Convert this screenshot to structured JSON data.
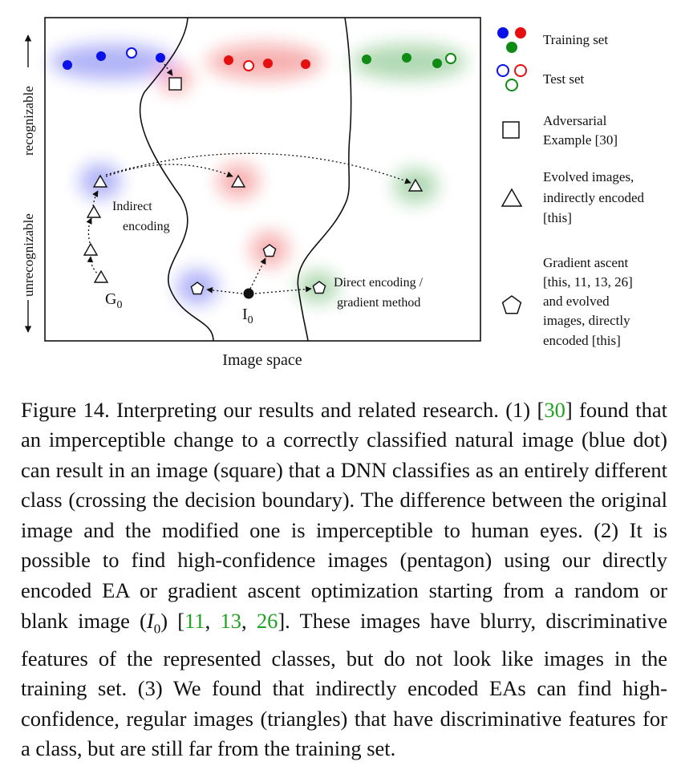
{
  "figure": {
    "y_axis_top": "recognizable",
    "y_axis_bottom": "unrecognizable",
    "x_axis": "Image space",
    "annotations": {
      "indirect_line1": "Indirect",
      "indirect_line2": "encoding",
      "g0": "G",
      "g0_sub": "0",
      "i0": "I",
      "i0_sub": "0",
      "direct_line1": "Direct encoding /",
      "direct_line2": "gradient method"
    },
    "legend": {
      "training": "Training set",
      "test": "Test set",
      "adversarial_line1": "Adversarial",
      "adversarial_line2": "Example [30]",
      "evolved_line1": "Evolved images,",
      "evolved_line2": "indirectly encoded",
      "evolved_line3": "[this]",
      "gradient_line1": "Gradient ascent",
      "gradient_line2": "[this, 11, 13, 26]",
      "gradient_line3": "and evolved",
      "gradient_line4": "images, directly",
      "gradient_line5": "encoded [this]"
    },
    "colors": {
      "blue": "#0b12e8",
      "red": "#e60f0f",
      "green": "#0f8a14"
    }
  },
  "caption": {
    "s1": "Figure 14.  Interpreting our results and related research. (1) [",
    "ref30": "30",
    "s2": "] found that an imperceptible change to a correctly classified natural image (blue dot) can result in an image (square) that a DNN classifies as an entirely different class (crossing the decision boundary). The difference between the original image and the modified one is imperceptible to human eyes.  (2) It is possible to find high-confidence images (pentagon) using our directly encoded EA or gradient ascent optimization starting from a random or blank image (",
    "i_var": "I",
    "i_sub": "0",
    "s3": ") [",
    "ref11": "11",
    "sep1": ", ",
    "ref13": "13",
    "sep2": ", ",
    "ref26": "26",
    "s4": "].  These images have blurry, discriminative features of the represented classes, but do not look like images in the training set. (3) We found that indirectly encoded EAs can find high-confidence, regular images (triangles) that have discriminative features for a class, but are still far from the training set."
  }
}
